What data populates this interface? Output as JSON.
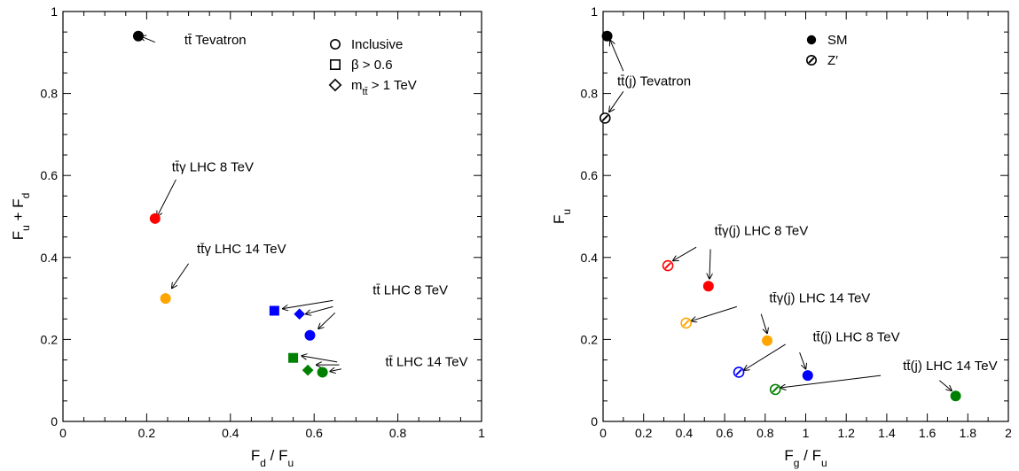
{
  "chart_data": [
    {
      "type": "scatter",
      "xlim": [
        0,
        1
      ],
      "ylim": [
        0,
        1
      ],
      "xticks": [
        "0",
        "0.2",
        "0.4",
        "0.6",
        "0.8",
        "1"
      ],
      "yticks": [
        "0",
        "0.2",
        "0.4",
        "0.6",
        "0.8",
        "1"
      ],
      "xlabel": {
        "main": "F",
        "sub1": "d",
        "mid": " / F",
        "sub2": "u"
      },
      "ylabel": {
        "main": "F",
        "sub1": "u",
        "mid": " + F",
        "sub2": "d"
      },
      "legend": {
        "placement": "top-right",
        "entries": [
          {
            "marker": "circle-open",
            "text": "Inclusive"
          },
          {
            "marker": "square-open",
            "text": "β > 0.6"
          },
          {
            "marker": "diamond-open",
            "text": "m",
            "sub": "tt̄",
            "rest": " > 1 TeV"
          }
        ]
      },
      "points": [
        {
          "x": 0.18,
          "y": 0.94,
          "marker": "circle",
          "color": "#000000"
        },
        {
          "x": 0.22,
          "y": 0.495,
          "marker": "circle",
          "color": "#ff0000"
        },
        {
          "x": 0.245,
          "y": 0.3,
          "marker": "circle",
          "color": "#ffa500"
        },
        {
          "x": 0.59,
          "y": 0.21,
          "marker": "circle",
          "color": "#0000ff"
        },
        {
          "x": 0.505,
          "y": 0.27,
          "marker": "square",
          "color": "#0000ff"
        },
        {
          "x": 0.565,
          "y": 0.262,
          "marker": "diamond",
          "color": "#0000ff"
        },
        {
          "x": 0.62,
          "y": 0.12,
          "marker": "circle",
          "color": "#008000"
        },
        {
          "x": 0.55,
          "y": 0.155,
          "marker": "square",
          "color": "#008000"
        },
        {
          "x": 0.585,
          "y": 0.125,
          "marker": "diamond",
          "color": "#008000"
        }
      ],
      "annotations": [
        {
          "text": "tt̄ Tevatron",
          "x": 0.29,
          "y": 0.92,
          "arrows": [
            [
              0.22,
              0.925,
              0.185,
              0.94
            ]
          ]
        },
        {
          "text": "tt̄γ LHC 8 TeV",
          "x": 0.26,
          "y": 0.61,
          "arrows": [
            [
              0.27,
              0.59,
              0.225,
              0.5
            ]
          ]
        },
        {
          "text": "tt̄γ LHC 14 TeV",
          "x": 0.32,
          "y": 0.41,
          "arrows": [
            [
              0.3,
              0.385,
              0.26,
              0.325
            ]
          ]
        },
        {
          "text": "tt̄ LHC 8 TeV",
          "x": 0.74,
          "y": 0.31,
          "arrows": [
            [
              0.645,
              0.295,
              0.525,
              0.275
            ],
            [
              0.645,
              0.28,
              0.58,
              0.262
            ],
            [
              0.65,
              0.265,
              0.61,
              0.226
            ]
          ]
        },
        {
          "text": "tt̄ LHC 14 TeV",
          "x": 0.77,
          "y": 0.135,
          "arrows": [
            [
              0.655,
              0.145,
              0.57,
              0.16
            ],
            [
              0.66,
              0.138,
              0.605,
              0.138
            ],
            [
              0.665,
              0.128,
              0.638,
              0.122
            ]
          ]
        }
      ]
    },
    {
      "type": "scatter",
      "xlim": [
        0,
        2
      ],
      "ylim": [
        0,
        1
      ],
      "xticks": [
        "0",
        "0.2",
        "0.4",
        "0.6",
        "0.8",
        "1",
        "1.2",
        "1.4",
        "1.6",
        "1.8",
        "2"
      ],
      "yticks": [
        "0",
        "0.2",
        "0.4",
        "0.6",
        "0.8",
        "1"
      ],
      "xlabel": {
        "main": "F",
        "sub1": "g",
        "mid": " / F",
        "sub2": "u"
      },
      "ylabel": {
        "main": "F",
        "sub1": "u",
        "mid": "",
        "sub2": ""
      },
      "legend": {
        "placement": "top-right",
        "entries": [
          {
            "marker": "circle-filled",
            "text": "SM"
          },
          {
            "marker": "circle-hatched",
            "text": "Z′"
          }
        ]
      },
      "points": [
        {
          "x": 0.02,
          "y": 0.94,
          "marker": "circle",
          "color": "#000000"
        },
        {
          "x": 0.01,
          "y": 0.74,
          "marker": "hatched",
          "color": "#000000"
        },
        {
          "x": 0.52,
          "y": 0.33,
          "marker": "circle",
          "color": "#ff0000"
        },
        {
          "x": 0.32,
          "y": 0.38,
          "marker": "hatched",
          "color": "#ff0000"
        },
        {
          "x": 0.81,
          "y": 0.197,
          "marker": "circle",
          "color": "#ffa500"
        },
        {
          "x": 0.41,
          "y": 0.24,
          "marker": "hatched",
          "color": "#ffa500"
        },
        {
          "x": 1.01,
          "y": 0.112,
          "marker": "circle",
          "color": "#0000ff"
        },
        {
          "x": 0.67,
          "y": 0.12,
          "marker": "hatched",
          "color": "#0000ff"
        },
        {
          "x": 1.74,
          "y": 0.062,
          "marker": "circle",
          "color": "#008000"
        },
        {
          "x": 0.85,
          "y": 0.078,
          "marker": "hatched",
          "color": "#008000"
        }
      ],
      "annotations": [
        {
          "text": "tt̄(j) Tevatron",
          "x": 0.07,
          "y": 0.82,
          "arrows": [
            [
              0.1,
              0.855,
              0.035,
              0.93
            ],
            [
              0.1,
              0.805,
              0.03,
              0.755
            ]
          ]
        },
        {
          "text": "tt̄γ(j) LHC 8 TeV",
          "x": 0.55,
          "y": 0.455,
          "arrows": [
            [
              0.46,
              0.425,
              0.345,
              0.392
            ],
            [
              0.53,
              0.42,
              0.525,
              0.348
            ]
          ]
        },
        {
          "text": "tt̄γ(j) LHC 14 TeV",
          "x": 0.82,
          "y": 0.29,
          "arrows": [
            [
              0.66,
              0.28,
              0.435,
              0.245
            ],
            [
              0.78,
              0.262,
              0.81,
              0.215
            ]
          ]
        },
        {
          "text": "tt̄(j) LHC 8 TeV",
          "x": 1.035,
          "y": 0.195,
          "arrows": [
            [
              0.9,
              0.188,
              0.695,
              0.125
            ],
            [
              0.97,
              0.168,
              1.0,
              0.128
            ]
          ]
        },
        {
          "text": "tt̄(j) LHC 14 TeV",
          "x": 1.48,
          "y": 0.125,
          "arrows": [
            [
              1.37,
              0.112,
              0.875,
              0.082
            ],
            [
              1.66,
              0.1,
              1.72,
              0.075
            ]
          ]
        }
      ]
    }
  ]
}
